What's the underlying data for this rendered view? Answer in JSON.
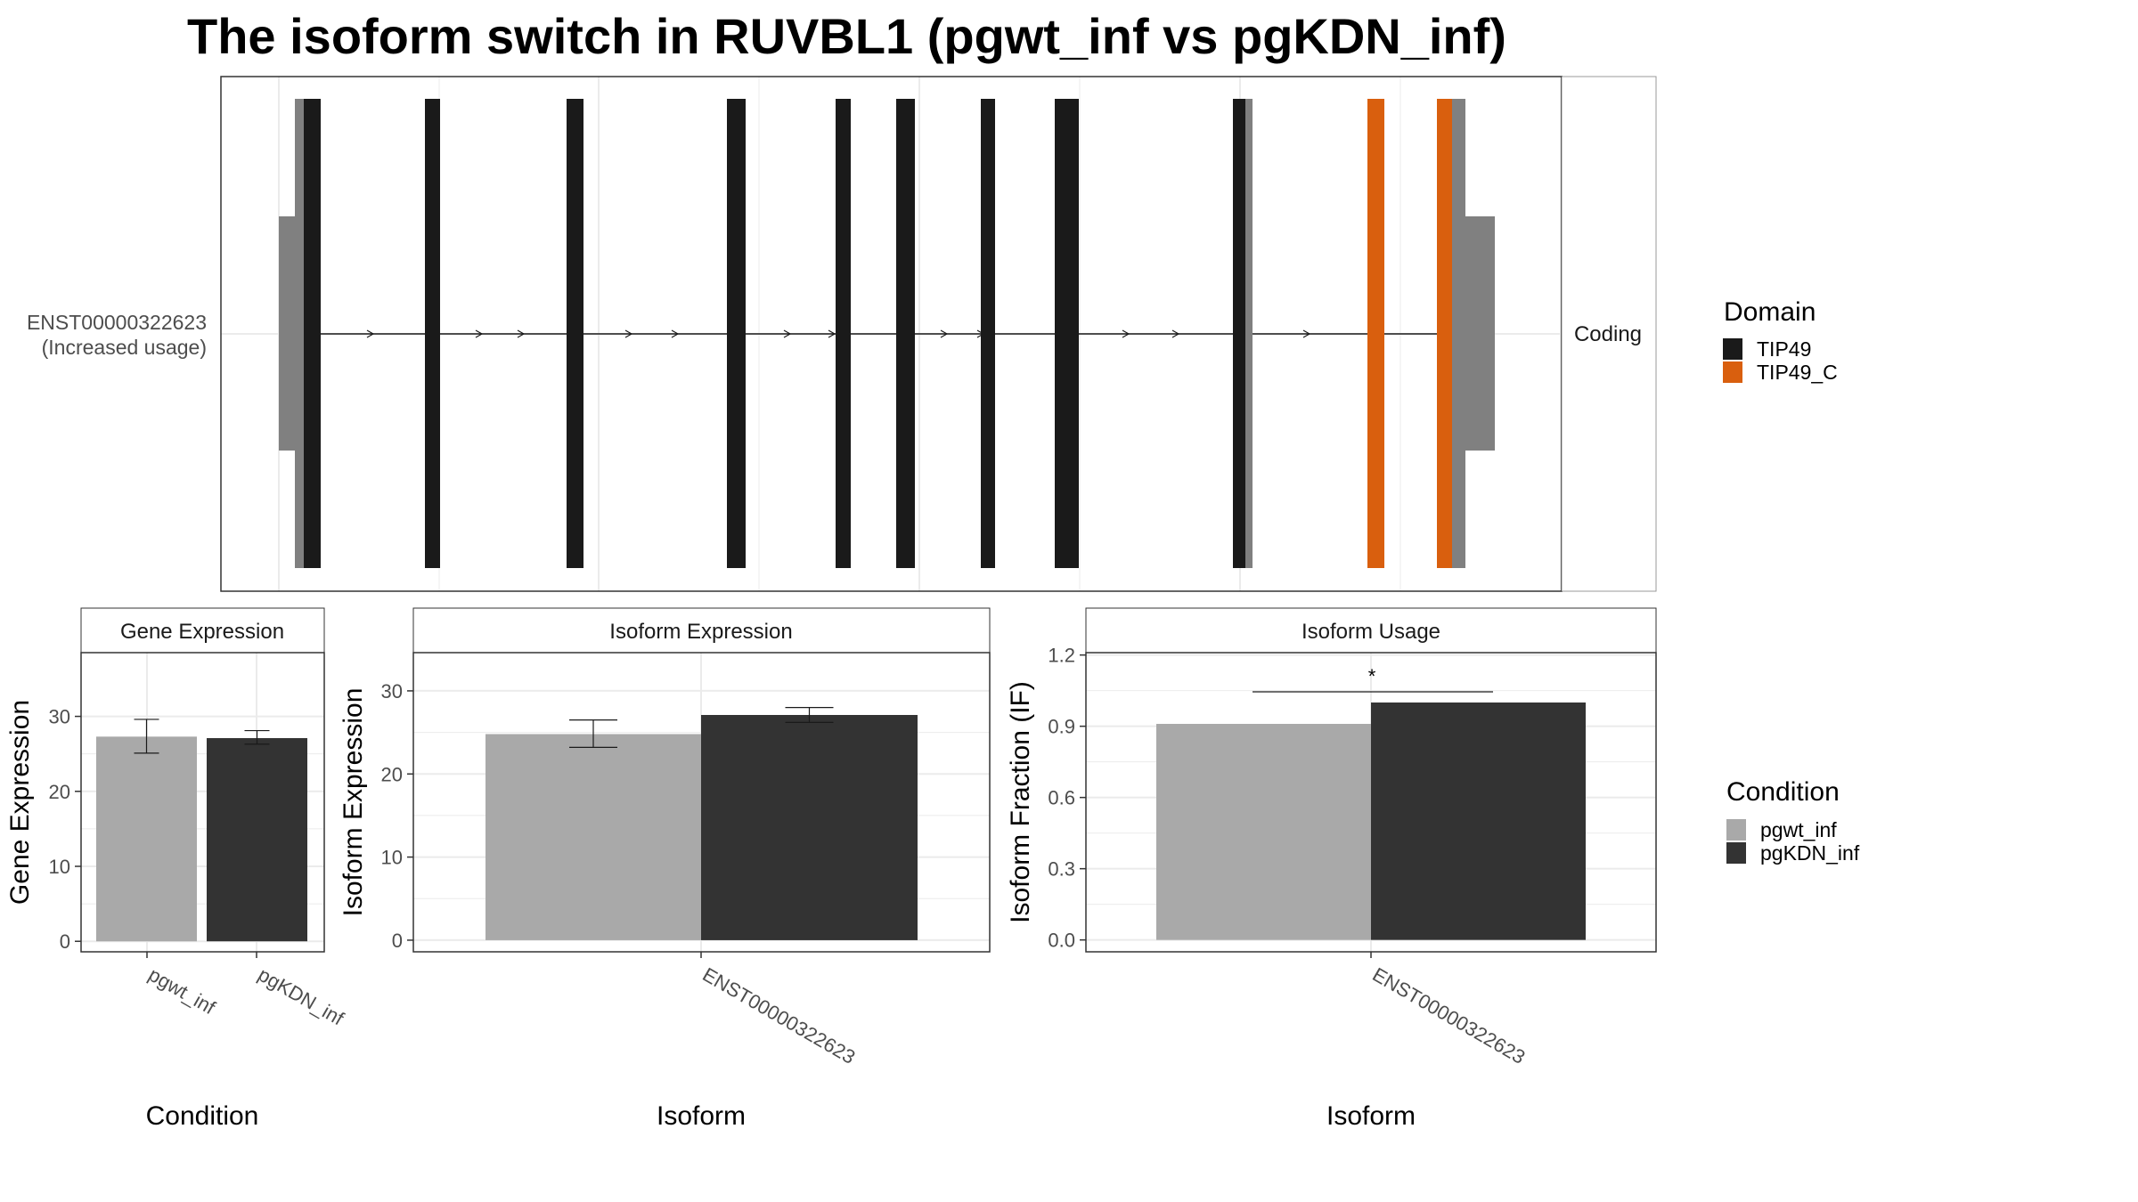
{
  "title": "The isoform switch in RUVBL1 (pgwt_inf vs pgKDN_inf)",
  "colors": {
    "tip49": "#1a1a1a",
    "tip49_c": "#d95f0e",
    "utr": "#808080",
    "pgwt_inf": "#a9a9a9",
    "pgKDN_inf": "#333333",
    "grid": "#ebebeb"
  },
  "structure": {
    "isoform_label_line1": "ENST00000322623",
    "isoform_label_line2": "(Increased usage)",
    "facet_label": "Coding",
    "legend_title": "Domain",
    "legend": [
      {
        "name": "TIP49",
        "color": "#1a1a1a"
      },
      {
        "name": "TIP49_C",
        "color": "#d95f0e"
      }
    ]
  },
  "condition_legend": {
    "title": "Condition",
    "items": [
      {
        "name": "pgwt_inf",
        "color": "#a9a9a9"
      },
      {
        "name": "pgKDN_inf",
        "color": "#333333"
      }
    ]
  },
  "chart_data": [
    {
      "type": "bar",
      "panel": "Gene Expression",
      "strip": "Gene Expression",
      "xlabel": "Condition",
      "ylabel": "Gene Expression",
      "categories": [
        "pgwt_inf",
        "pgKDN_inf"
      ],
      "values": [
        27.3,
        27.1
      ],
      "error_low": [
        25.1,
        26.3
      ],
      "error_high": [
        29.6,
        28.1
      ],
      "ylim": [
        -1.4,
        38.5
      ],
      "yticks": [
        0,
        10,
        20,
        30
      ]
    },
    {
      "type": "bar",
      "panel": "Isoform Expression",
      "strip": "Isoform Expression",
      "xlabel": "Isoform",
      "ylabel": "Isoform Expression",
      "categories": [
        "ENST00000322623"
      ],
      "series": [
        {
          "name": "pgwt_inf",
          "values": [
            24.8
          ],
          "error_low": [
            23.2
          ],
          "error_high": [
            26.5
          ]
        },
        {
          "name": "pgKDN_inf",
          "values": [
            27.1
          ],
          "error_low": [
            26.2
          ],
          "error_high": [
            28.0
          ]
        }
      ],
      "ylim": [
        -1.4,
        34.6
      ],
      "yticks": [
        0,
        10,
        20,
        30
      ]
    },
    {
      "type": "bar",
      "panel": "Isoform Usage",
      "strip": "Isoform Usage",
      "xlabel": "Isoform",
      "ylabel": "Isoform Fraction (IF)",
      "categories": [
        "ENST00000322623"
      ],
      "series": [
        {
          "name": "pgwt_inf",
          "values": [
            0.91
          ]
        },
        {
          "name": "pgKDN_inf",
          "values": [
            1.0
          ]
        }
      ],
      "significance": "*",
      "ylim": [
        -0.05,
        1.21
      ],
      "yticks": [
        "0.0",
        "0.3",
        "0.6",
        "0.9",
        "1.2"
      ]
    }
  ]
}
